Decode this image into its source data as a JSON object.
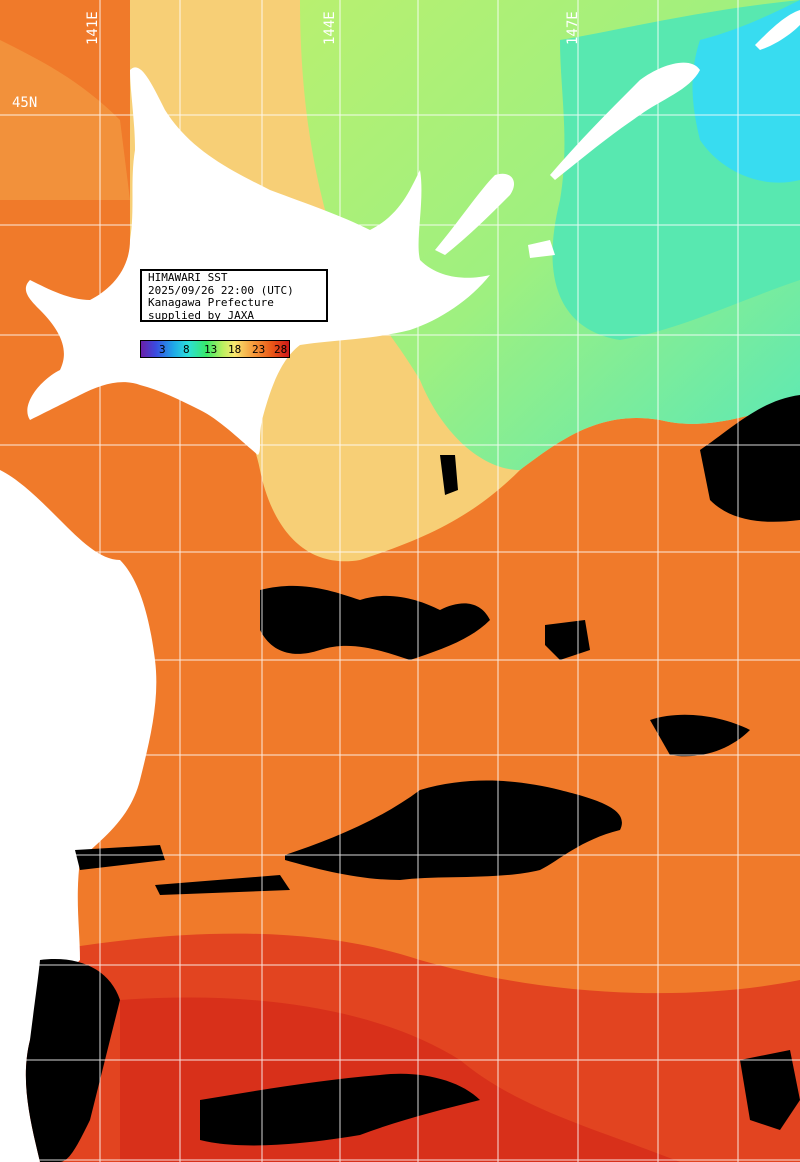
{
  "infobox": {
    "line1": "HIMAWARI SST",
    "line2": "2025/09/26 22:00 (UTC)",
    "line3": "Kanagawa Prefecture",
    "line4": "supplied by JAXA"
  },
  "colorbar": {
    "ticks": [
      "3",
      "8",
      "13",
      "18",
      "23",
      "28"
    ]
  },
  "grid_labels": {
    "lat": [
      "45N"
    ],
    "lon": [
      "141E",
      "144E",
      "147E"
    ]
  },
  "palette": {
    "land": "#ffffff",
    "cloud": "#000000",
    "warm": "#f07828",
    "hot": "#e03818",
    "mild": "#f8d078",
    "cool": "#a8f078",
    "cold": "#40e8c8",
    "coldest": "#30d8f0"
  }
}
